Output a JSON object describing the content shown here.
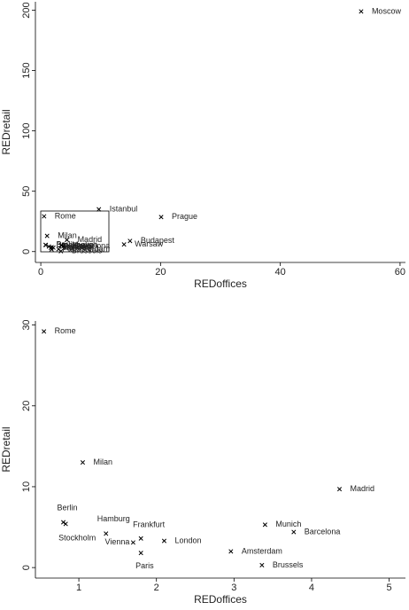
{
  "chart_data": [
    {
      "type": "scatter",
      "x_label": "REDoffices",
      "y_label": "REDretail",
      "labels": [
        "Moscow",
        "Istanbul",
        "Prague",
        "Budapest",
        "Warsaw",
        "Rome",
        "Milan",
        "Berlin",
        "Stockholm",
        "Hamburg",
        "Vienna",
        "Frankfurt",
        "Paris",
        "London",
        "Amsterdam",
        "Munich",
        "Barcelona",
        "Madrid",
        "Brussels"
      ],
      "x": [
        53.5,
        9.7,
        20.1,
        14.9,
        13.9,
        0.55,
        1.05,
        0.8,
        0.83,
        1.35,
        1.7,
        1.8,
        1.8,
        2.1,
        2.96,
        3.4,
        3.77,
        4.36,
        3.36
      ],
      "y": [
        199,
        35,
        28.6,
        8.8,
        5.9,
        29.2,
        13,
        5.6,
        5.4,
        4.2,
        3.1,
        3.6,
        1.8,
        3.3,
        2.0,
        5.3,
        4.4,
        9.7,
        0.3
      ],
      "xlim": [
        -0.9,
        60.9
      ],
      "ylim": [
        -9,
        207
      ],
      "xticks": [
        0,
        20,
        40,
        60
      ],
      "yticks": [
        0,
        50,
        100,
        150,
        200
      ],
      "color": "#000000"
    },
    {
      "type": "scatter",
      "x_label": "REDoffices",
      "y_label": "REDretail",
      "labels": [
        "Rome",
        "Milan",
        "Berlin",
        "Stockholm",
        "Hamburg",
        "Vienna",
        "Frankfurt",
        "Paris",
        "London",
        "Amsterdam",
        "Munich",
        "Barcelona",
        "Madrid",
        "Brussels"
      ],
      "x": [
        0.55,
        1.05,
        0.8,
        0.83,
        1.35,
        1.7,
        1.8,
        1.8,
        2.1,
        2.96,
        3.4,
        3.77,
        4.36,
        3.36
      ],
      "y": [
        29.2,
        13,
        5.6,
        5.4,
        4.2,
        3.1,
        3.6,
        1.8,
        3.3,
        2.0,
        5.3,
        4.4,
        9.7,
        0.3
      ],
      "xlim": [
        0.44,
        5.21
      ],
      "ylim": [
        -1.3,
        30.5
      ],
      "xticks": [
        1,
        2,
        3,
        4,
        5
      ],
      "yticks": [
        0,
        10,
        20,
        30
      ],
      "color": "#000000"
    }
  ]
}
